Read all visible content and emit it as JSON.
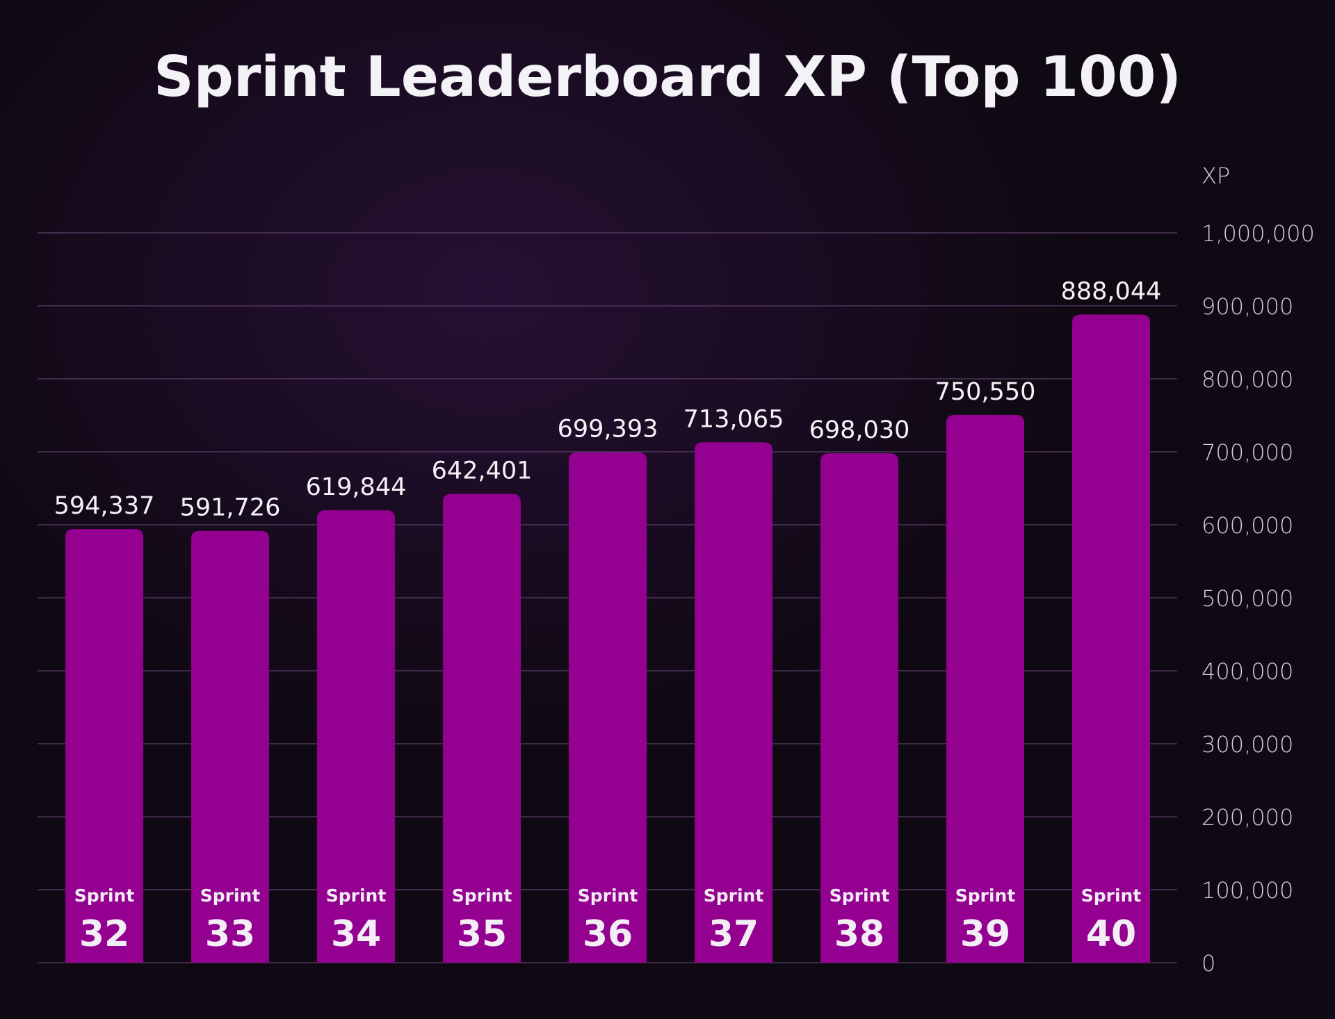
{
  "chart_data": {
    "type": "bar",
    "title": "Sprint Leaderboard XP (Top 100)",
    "xlabel": "",
    "ylabel": "XP",
    "ylim": [
      0,
      1000000
    ],
    "y_ticks": [
      0,
      100000,
      200000,
      300000,
      400000,
      500000,
      600000,
      700000,
      800000,
      900000,
      1000000
    ],
    "y_tick_labels": [
      "0",
      "100,000",
      "200,000",
      "300,000",
      "400,000",
      "500,000",
      "600,000",
      "700,000",
      "800,000",
      "900,000",
      "1,000,000"
    ],
    "y_axis_position": "right",
    "grid": true,
    "category_prefix": "Sprint",
    "categories": [
      "32",
      "33",
      "34",
      "35",
      "36",
      "37",
      "38",
      "39",
      "40"
    ],
    "values": [
      594337,
      591726,
      619844,
      642401,
      699393,
      713065,
      698030,
      750550,
      888044
    ],
    "value_labels": [
      "594,337",
      "591,726",
      "619,844",
      "642,401",
      "699,393",
      "713,065",
      "698,030",
      "750,550",
      "888,044"
    ],
    "bar_color": "#94008f",
    "background_color": "#1b0c24",
    "text_color": "#f3f2f6"
  }
}
